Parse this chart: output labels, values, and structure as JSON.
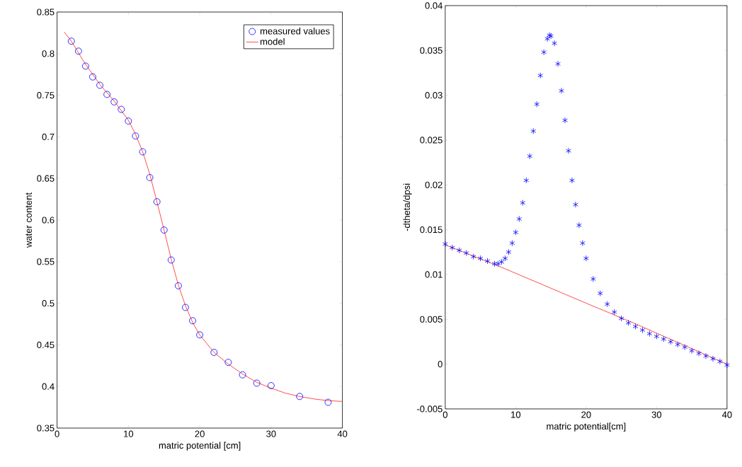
{
  "chart_data": [
    {
      "type": "scatter",
      "xlabel": "matric potential [cm]",
      "ylabel": "water content",
      "xlim": [
        0,
        40
      ],
      "ylim": [
        0.35,
        0.85
      ],
      "xticks": [
        0,
        10,
        20,
        30,
        40
      ],
      "yticks": [
        0.35,
        0.4,
        0.45,
        0.5,
        0.55,
        0.6,
        0.65,
        0.7,
        0.75,
        0.8,
        0.85
      ],
      "legend": "top right",
      "grid": false,
      "series": [
        {
          "name": "measured values",
          "type": "scatter",
          "marker": "circle",
          "color": "#0000ff",
          "x": [
            2,
            3,
            4,
            5,
            6,
            7,
            8,
            9,
            10,
            11,
            12,
            13,
            14,
            15,
            16,
            17,
            18,
            19,
            20,
            22,
            24,
            26,
            28,
            30,
            34,
            38
          ],
          "values": [
            0.815,
            0.803,
            0.785,
            0.772,
            0.762,
            0.751,
            0.742,
            0.733,
            0.719,
            0.701,
            0.682,
            0.651,
            0.622,
            0.588,
            0.552,
            0.521,
            0.495,
            0.479,
            0.462,
            0.441,
            0.429,
            0.414,
            0.404,
            0.401,
            0.388,
            0.381
          ]
        },
        {
          "name": "model",
          "type": "line",
          "marker": "none",
          "color": "#ff0000",
          "x": [
            1,
            2,
            4,
            6,
            8,
            10,
            11,
            12,
            13,
            14,
            15,
            16,
            17,
            18,
            19,
            20,
            22,
            24,
            26,
            28,
            30,
            32,
            34,
            36,
            38,
            40
          ],
          "values": [
            0.826,
            0.815,
            0.787,
            0.763,
            0.743,
            0.72,
            0.703,
            0.682,
            0.655,
            0.622,
            0.588,
            0.553,
            0.522,
            0.497,
            0.477,
            0.462,
            0.441,
            0.427,
            0.415,
            0.405,
            0.398,
            0.392,
            0.388,
            0.385,
            0.383,
            0.382
          ]
        }
      ]
    },
    {
      "type": "scatter",
      "xlabel": "matric potential[cm]",
      "ylabel": "-dtheta/dpsi",
      "xlim": [
        0,
        40
      ],
      "ylim": [
        -0.005,
        0.04
      ],
      "xticks": [
        0,
        10,
        20,
        30,
        40
      ],
      "yticks": [
        -0.005,
        0,
        0.005,
        0.01,
        0.015,
        0.02,
        0.025,
        0.03,
        0.035,
        0.04
      ],
      "grid": false,
      "series": [
        {
          "type": "line",
          "marker": "none",
          "color": "#ff0000",
          "x": [
            0,
            8,
            20,
            27,
            40
          ],
          "values": [
            0.0133,
            0.0108,
            0.0068,
            0.0045,
            0.0
          ]
        },
        {
          "type": "scatter",
          "marker": "cross",
          "color": "#0000ff",
          "x": [
            0,
            1,
            2,
            3,
            4,
            5,
            6,
            7,
            7.5,
            8,
            8.5,
            9,
            9.5,
            10,
            10.5,
            11,
            11.5,
            12,
            12.5,
            13,
            13.5,
            14,
            14.5,
            14.8,
            15,
            15.5,
            16,
            16.5,
            17,
            17.5,
            18,
            18.5,
            19,
            19.5,
            20,
            21,
            22,
            23,
            24,
            25,
            26,
            27,
            28,
            29,
            30,
            31,
            32,
            33,
            34,
            35,
            36,
            37,
            38,
            39,
            40
          ],
          "values": [
            0.0134,
            0.013,
            0.0127,
            0.0124,
            0.012,
            0.0118,
            0.0115,
            0.0112,
            0.0112,
            0.0114,
            0.0118,
            0.0125,
            0.0135,
            0.0147,
            0.0162,
            0.018,
            0.0205,
            0.0232,
            0.026,
            0.029,
            0.0322,
            0.0348,
            0.0363,
            0.0367,
            0.0366,
            0.0358,
            0.0335,
            0.0305,
            0.0272,
            0.0238,
            0.0205,
            0.0178,
            0.0155,
            0.0135,
            0.0118,
            0.0095,
            0.0079,
            0.0067,
            0.0058,
            0.0051,
            0.0046,
            0.0042,
            0.0038,
            0.0034,
            0.0031,
            0.0028,
            0.0025,
            0.0022,
            0.0019,
            0.0015,
            0.0012,
            0.0009,
            0.0006,
            0.0003,
            -0.0001
          ]
        }
      ]
    }
  ]
}
